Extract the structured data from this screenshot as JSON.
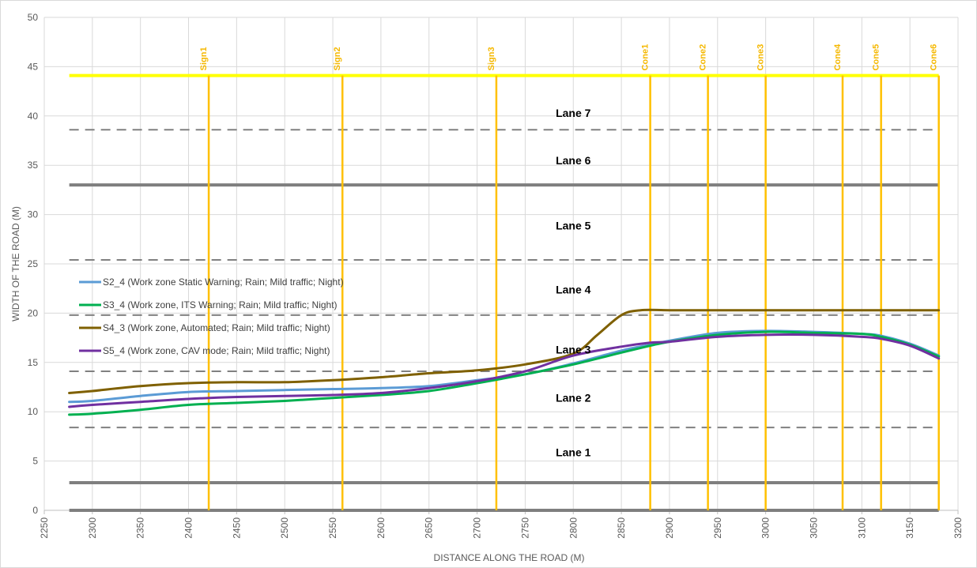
{
  "chart_data": {
    "type": "line",
    "title": "",
    "xlabel": "DISTANCE ALONG THE ROAD (M)",
    "ylabel": "WIDTH OF THE ROAD (M)",
    "xlim": [
      2250,
      3200
    ],
    "ylim": [
      0,
      50
    ],
    "xticks": [
      2250,
      2300,
      2350,
      2400,
      2450,
      2500,
      2550,
      2600,
      2650,
      2700,
      2750,
      2800,
      2850,
      2900,
      2950,
      3000,
      3050,
      3100,
      3150,
      3200
    ],
    "yticks": [
      0,
      5,
      10,
      15,
      20,
      25,
      30,
      35,
      40,
      45,
      50
    ],
    "grid": true,
    "legend_position": "left-middle",
    "series": [
      {
        "name": "S2_4 (Work zone Static Warning; Rain; Mild traffic; Night)",
        "color": "#5b9bd5",
        "x": [
          2276,
          2300,
          2350,
          2400,
          2450,
          2500,
          2550,
          2600,
          2650,
          2700,
          2750,
          2800,
          2850,
          2880,
          2900,
          2950,
          3000,
          3050,
          3100,
          3120,
          3150,
          3180
        ],
        "y": [
          11.0,
          11.1,
          11.6,
          12.0,
          12.1,
          12.2,
          12.3,
          12.4,
          12.6,
          13.2,
          13.8,
          14.9,
          16.2,
          16.8,
          17.2,
          18.0,
          18.2,
          18.1,
          17.9,
          17.7,
          16.9,
          15.7
        ]
      },
      {
        "name": "S3_4 (Work zone, ITS Warning; Rain; Mild traffic; Night)",
        "color": "#00b050",
        "x": [
          2276,
          2300,
          2350,
          2400,
          2450,
          2500,
          2550,
          2600,
          2650,
          2700,
          2750,
          2800,
          2850,
          2880,
          2900,
          2950,
          3000,
          3050,
          3100,
          3120,
          3150,
          3180
        ],
        "y": [
          9.7,
          9.8,
          10.2,
          10.7,
          10.9,
          11.1,
          11.4,
          11.7,
          12.1,
          12.9,
          13.8,
          14.8,
          16.0,
          16.7,
          17.1,
          17.8,
          18.1,
          18.0,
          17.9,
          17.6,
          16.8,
          15.6
        ]
      },
      {
        "name": "S4_3 (Work zone, Automated; Rain; Mild traffic; Night)",
        "color": "#7f6000",
        "x": [
          2276,
          2300,
          2350,
          2400,
          2450,
          2500,
          2550,
          2600,
          2650,
          2700,
          2750,
          2800,
          2825,
          2850,
          2870,
          2900,
          2950,
          3000,
          3050,
          3100,
          3150,
          3180
        ],
        "y": [
          11.9,
          12.1,
          12.6,
          12.9,
          13.0,
          13.0,
          13.2,
          13.5,
          13.9,
          14.2,
          14.8,
          15.9,
          17.8,
          19.8,
          20.3,
          20.3,
          20.3,
          20.3,
          20.3,
          20.3,
          20.3,
          20.3
        ]
      },
      {
        "name": "S5_4 (Work zone, CAV mode; Rain; Mild traffic; Night)",
        "color": "#7030a0",
        "x": [
          2276,
          2300,
          2350,
          2400,
          2450,
          2500,
          2550,
          2600,
          2650,
          2700,
          2750,
          2800,
          2850,
          2880,
          2900,
          2950,
          3000,
          3050,
          3100,
          3120,
          3150,
          3180
        ],
        "y": [
          10.5,
          10.7,
          11.0,
          11.3,
          11.5,
          11.6,
          11.7,
          11.9,
          12.4,
          13.1,
          14.1,
          15.7,
          16.6,
          17.0,
          17.1,
          17.6,
          17.8,
          17.8,
          17.6,
          17.4,
          16.7,
          15.4
        ]
      }
    ],
    "reference_lines": {
      "solid_edges": {
        "color": "#7f7f7f",
        "y": [
          0,
          2.8,
          33.0
        ]
      },
      "dashed_lanes": {
        "color": "#808080",
        "y": [
          8.4,
          14.1,
          19.8,
          25.4,
          38.6
        ]
      },
      "yellow_edge": {
        "color": "#ffff00",
        "y": 44.1
      },
      "x_start": 2276,
      "x_end": 3180
    },
    "vertical_markers": [
      {
        "label": "Sign1",
        "x": 2421
      },
      {
        "label": "Sign2",
        "x": 2560
      },
      {
        "label": "Sign3",
        "x": 2720
      },
      {
        "label": "Cone1",
        "x": 2880
      },
      {
        "label": "Cone2",
        "x": 2940
      },
      {
        "label": "Cone3",
        "x": 3000
      },
      {
        "label": "Cone4",
        "x": 3080
      },
      {
        "label": "Cone5",
        "x": 3120
      },
      {
        "label": "Cone6",
        "x": 3180
      }
    ],
    "marker_color": "#ffc000",
    "lane_labels": [
      {
        "text": "Lane 1",
        "x": 2800,
        "y": 5.9
      },
      {
        "text": "Lane 2",
        "x": 2800,
        "y": 11.4
      },
      {
        "text": "Lane 3",
        "x": 2800,
        "y": 16.3
      },
      {
        "text": "Lane 4",
        "x": 2800,
        "y": 22.4
      },
      {
        "text": "Lane 5",
        "x": 2800,
        "y": 28.9
      },
      {
        "text": "Lane 6",
        "x": 2800,
        "y": 35.5
      },
      {
        "text": "Lane 7",
        "x": 2800,
        "y": 40.3
      }
    ]
  }
}
